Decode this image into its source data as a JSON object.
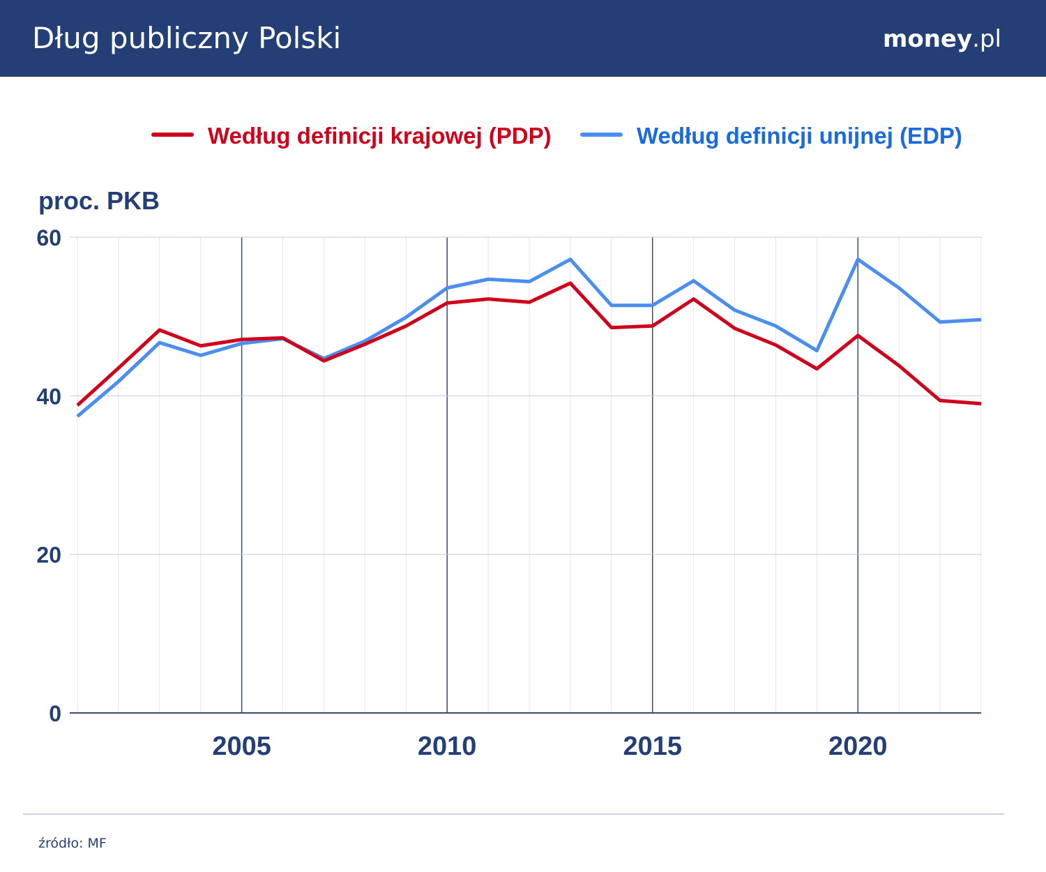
{
  "header": {
    "title": "Dług publiczny Polski",
    "logo_bold": "money",
    "logo_rest": ".pl"
  },
  "source": "źródło: MF",
  "colors": {
    "pdp": "#d0021b",
    "edp": "#4a8ef0",
    "navy": "#233f75"
  },
  "chart_data": {
    "type": "line",
    "title": "Dług publiczny Polski",
    "ylabel": "proc. PKB",
    "xlabel": "",
    "ylim": [
      0,
      60
    ],
    "xlim": [
      2001,
      2023
    ],
    "yticks": [
      0,
      20,
      40,
      60
    ],
    "xticks": [
      2005,
      2010,
      2015,
      2020
    ],
    "grid": true,
    "legend": "top",
    "x": [
      2001,
      2002,
      2003,
      2004,
      2005,
      2006,
      2007,
      2008,
      2009,
      2010,
      2011,
      2012,
      2013,
      2014,
      2015,
      2016,
      2017,
      2018,
      2019,
      2020,
      2021,
      2022,
      2023
    ],
    "series": [
      {
        "name": "Według definicji krajowej (PDP)",
        "color": "#d0021b",
        "values": [
          38.8,
          43.5,
          48.3,
          46.3,
          47.1,
          47.3,
          44.4,
          46.5,
          48.8,
          51.7,
          52.2,
          51.8,
          54.2,
          48.6,
          48.8,
          52.2,
          48.5,
          46.4,
          43.4,
          47.6,
          43.8,
          39.4,
          39.0
        ]
      },
      {
        "name": "Według definicji unijnej (EDP)",
        "color": "#4a8ef0",
        "values": [
          37.4,
          41.8,
          46.7,
          45.1,
          46.6,
          47.2,
          44.7,
          46.9,
          49.9,
          53.6,
          54.7,
          54.4,
          57.2,
          51.4,
          51.4,
          54.5,
          50.8,
          48.8,
          45.7,
          57.2,
          53.6,
          49.3,
          49.6
        ]
      }
    ]
  }
}
